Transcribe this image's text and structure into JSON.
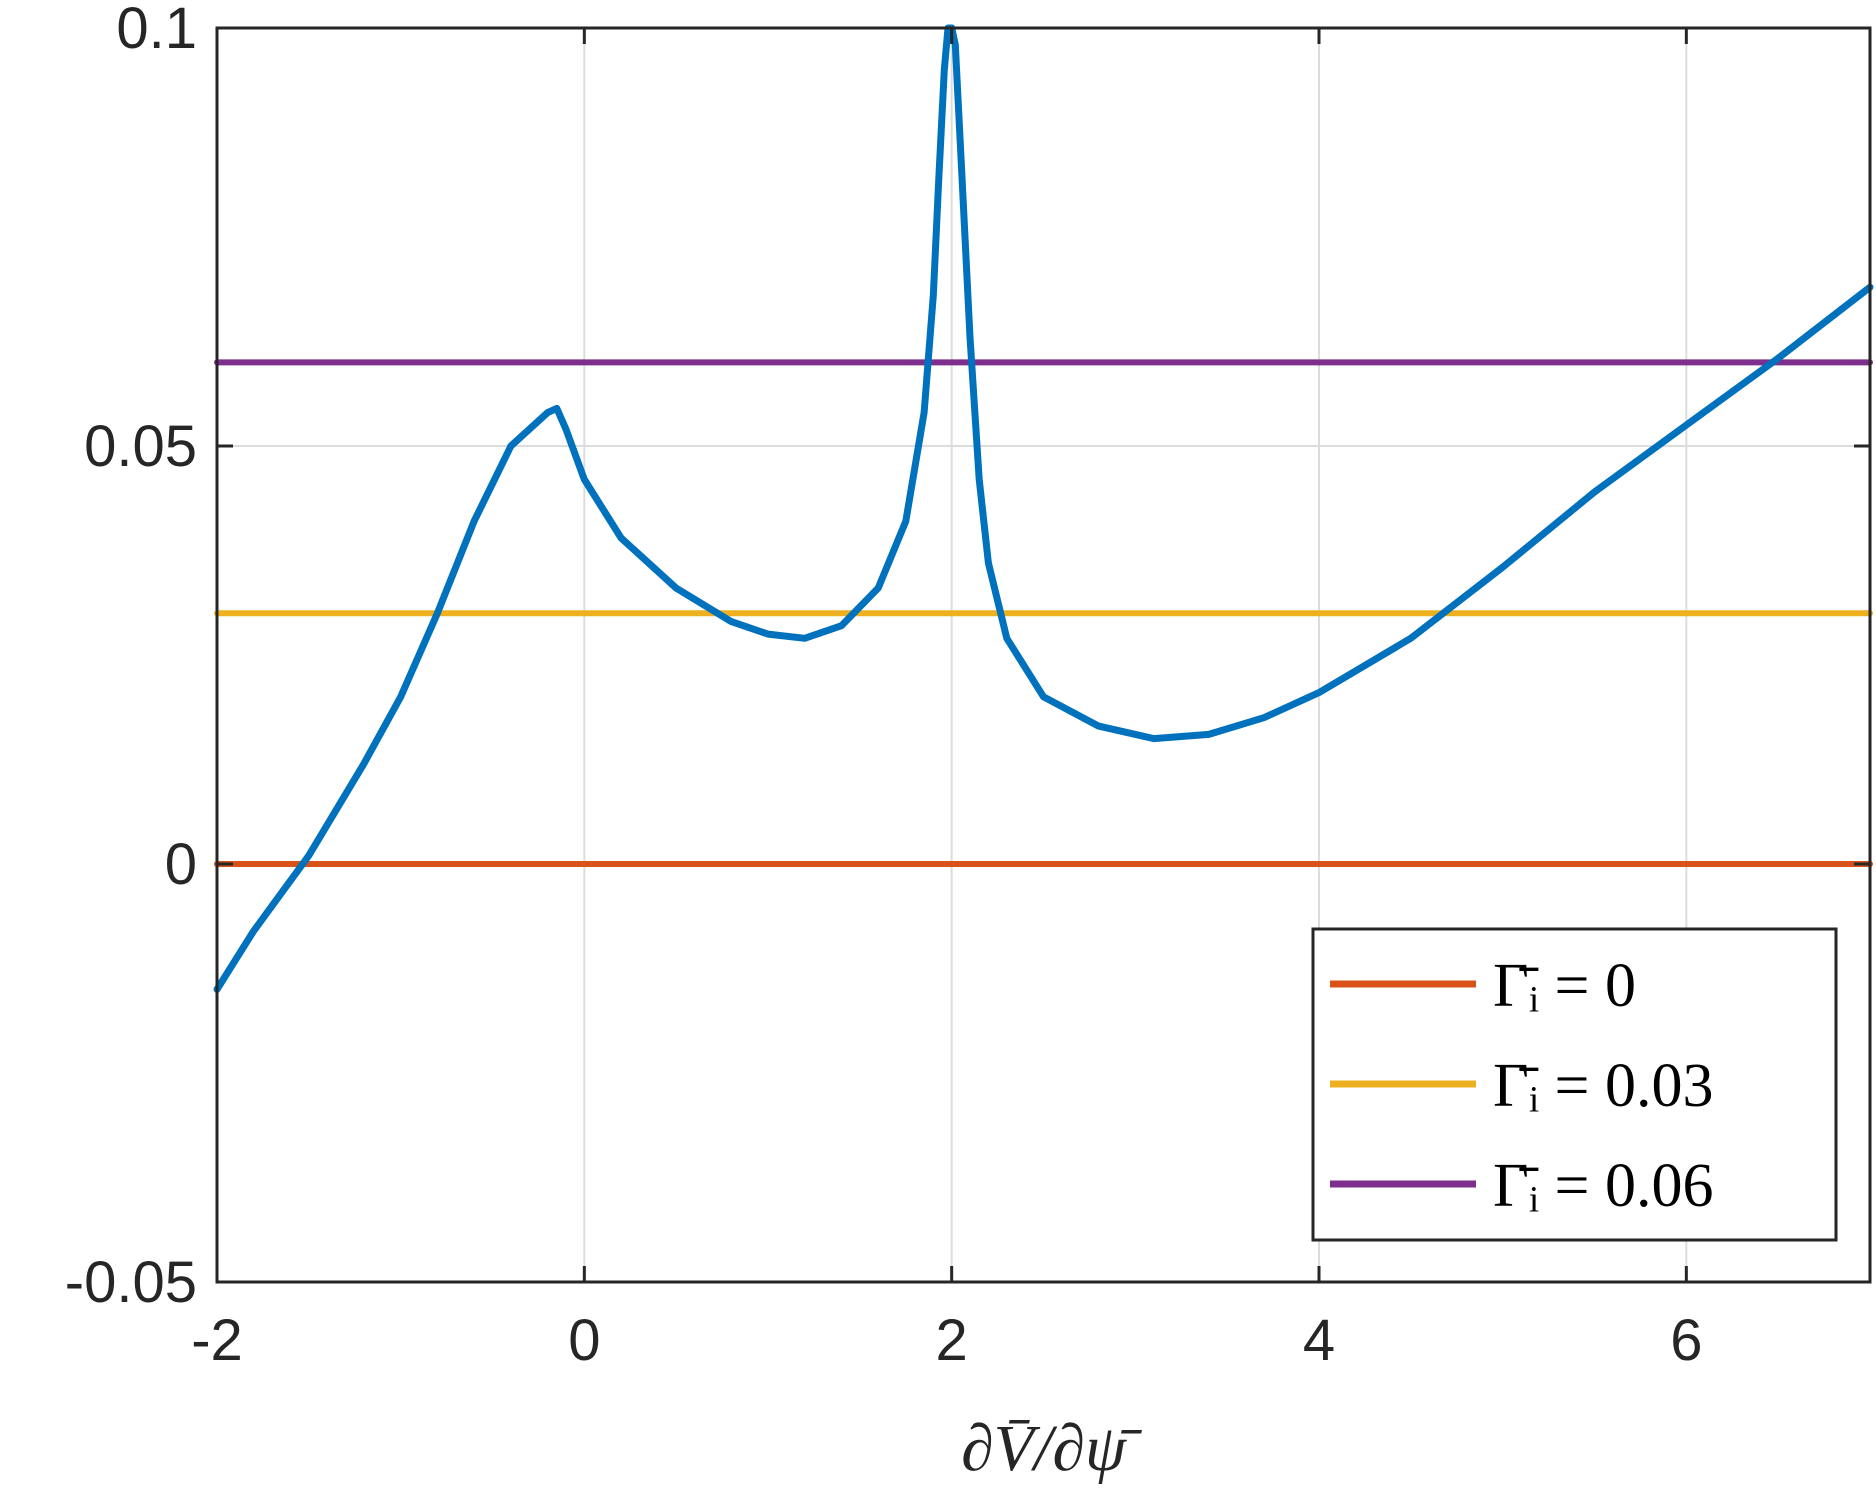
{
  "chart_data": {
    "type": "line",
    "title": "",
    "xlabel": "∂V̄/∂ψ̄",
    "ylabel": "",
    "xlim": [
      -2,
      7
    ],
    "ylim": [
      -0.05,
      0.1
    ],
    "x_ticks": [
      -2,
      0,
      2,
      4,
      6
    ],
    "y_ticks": [
      -0.05,
      0,
      0.05,
      0.1
    ],
    "x_tick_labels": [
      "-2",
      "0",
      "2",
      "4",
      "6"
    ],
    "y_tick_labels": [
      "-0.05",
      "0",
      "0.05",
      "0.1"
    ],
    "grid": true,
    "legend_position": "bottom-right",
    "series": [
      {
        "color": "#0072BD",
        "x": [
          -2,
          -1.8,
          -1.5,
          -1.2,
          -1.0,
          -0.8,
          -0.6,
          -0.4,
          -0.2,
          -0.15,
          -0.1,
          0,
          0.2,
          0.5,
          0.8,
          1.0,
          1.2,
          1.4,
          1.6,
          1.75,
          1.85,
          1.9,
          1.93,
          1.96,
          1.98,
          2.0,
          2.02,
          2.05,
          2.1,
          2.15,
          2.2,
          2.3,
          2.5,
          2.8,
          3.1,
          3.4,
          3.7,
          4.0,
          4.5,
          5.0,
          5.5,
          6.0,
          6.5,
          7.0
        ],
        "y": [
          -0.015,
          -0.008,
          0.001,
          0.012,
          0.02,
          0.03,
          0.041,
          0.05,
          0.054,
          0.0545,
          0.052,
          0.046,
          0.039,
          0.033,
          0.029,
          0.0275,
          0.027,
          0.0285,
          0.033,
          0.041,
          0.054,
          0.068,
          0.082,
          0.095,
          0.1,
          0.1,
          0.098,
          0.085,
          0.063,
          0.046,
          0.036,
          0.027,
          0.02,
          0.0165,
          0.015,
          0.0155,
          0.0175,
          0.0205,
          0.027,
          0.0355,
          0.0445,
          0.0525,
          0.0605,
          0.069
        ]
      },
      {
        "name": "Γ̄ᵢ = 0",
        "color": "#D95319",
        "x": [
          -2,
          7
        ],
        "y": [
          0,
          0
        ]
      },
      {
        "name": "Γ̄ᵢ = 0.03",
        "color": "#EDB120",
        "x": [
          -2,
          7
        ],
        "y": [
          0.03,
          0.03
        ]
      },
      {
        "name": "Γ̄ᵢ = 0.06",
        "color": "#7E2F8E",
        "x": [
          -2,
          7
        ],
        "y": [
          0.06,
          0.06
        ]
      }
    ]
  }
}
